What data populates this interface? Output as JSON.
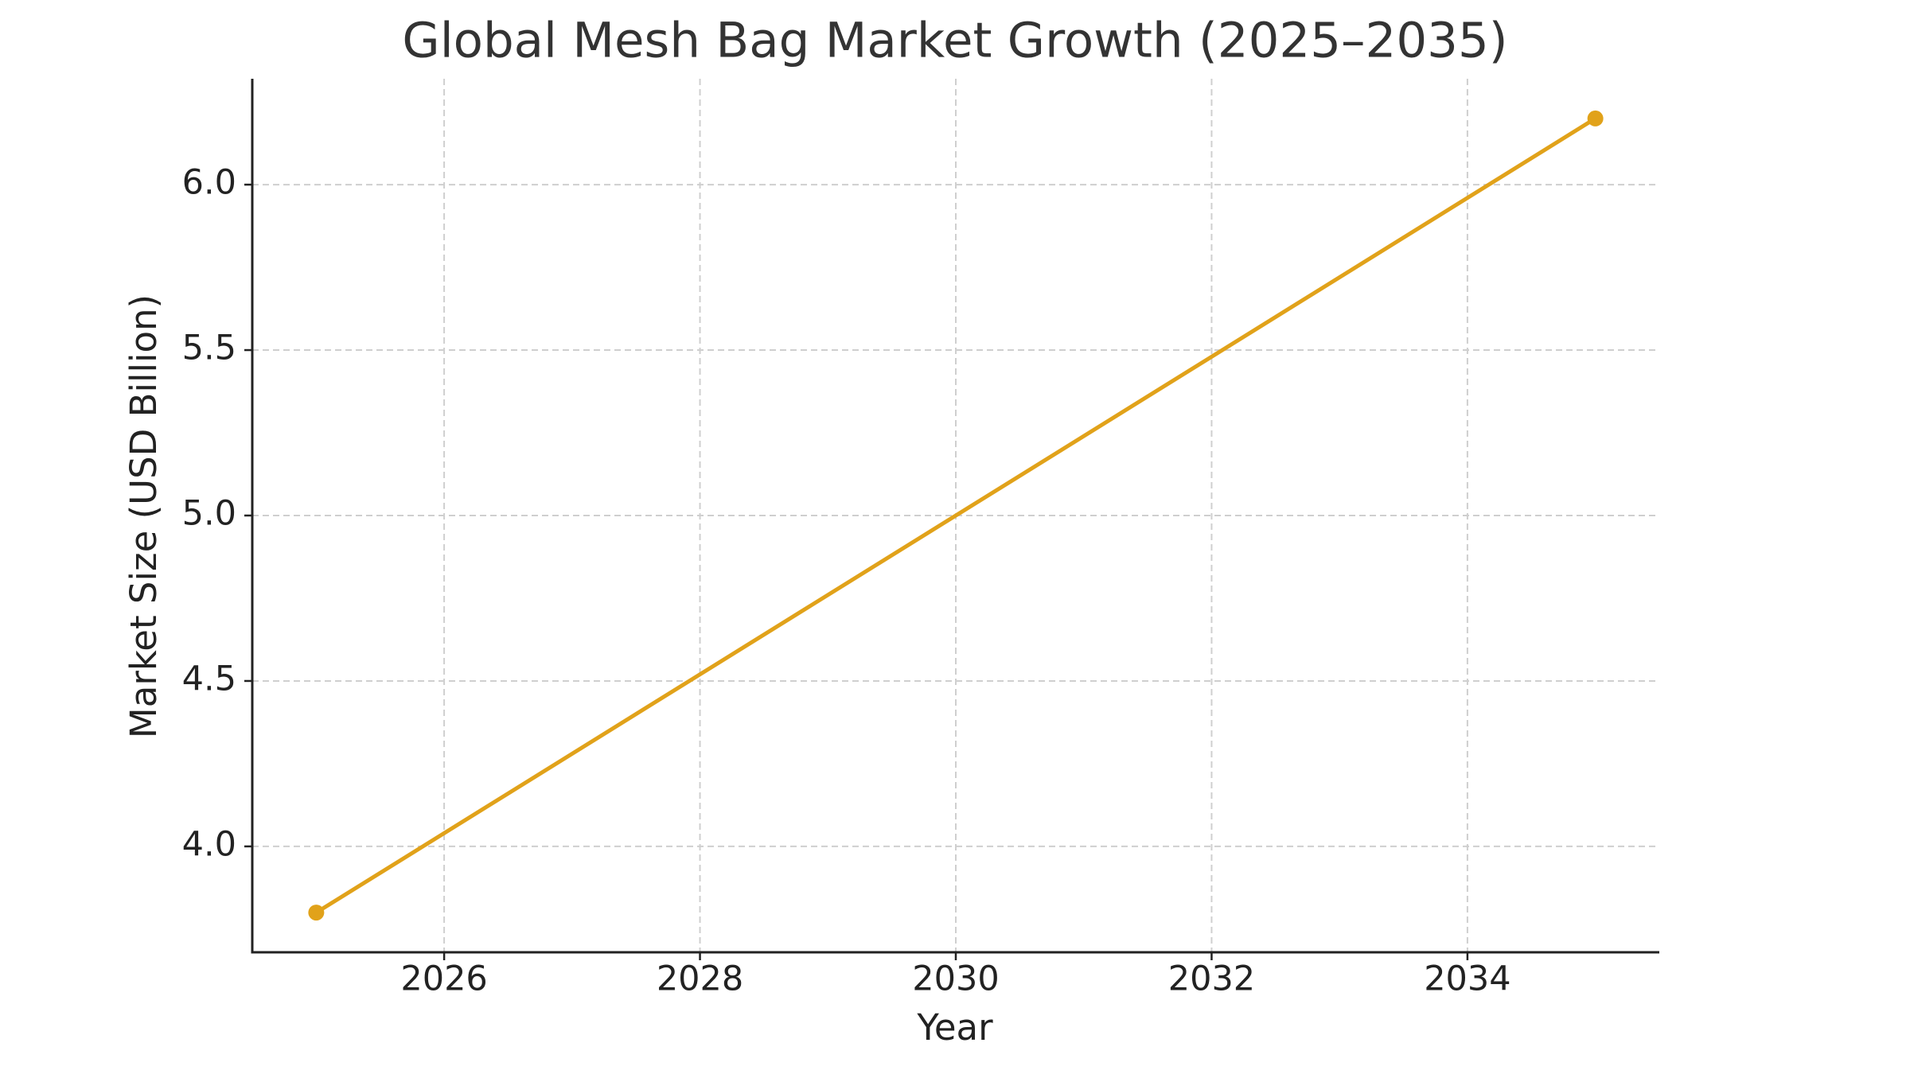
{
  "chart_data": {
    "type": "line",
    "title": "Global Mesh Bag Market Growth (2025–2035)",
    "x_label": "Year",
    "y_label": "Market Size (USD Billion)",
    "x": [
      2025,
      2035
    ],
    "series": [
      {
        "name": "Market Size",
        "color": "#e1a21a",
        "values": [
          3.8,
          6.2
        ]
      }
    ],
    "xlim": [
      2024.5,
      2035.5
    ],
    "ylim": [
      3.68,
      6.32
    ],
    "xticks": [
      2026,
      2028,
      2030,
      2032,
      2034
    ],
    "yticks": [
      {
        "value": 4,
        "label": "4.0"
      },
      4.5,
      {
        "value": 5,
        "label": "5.0"
      },
      5.5,
      {
        "value": 6,
        "label": "6.0"
      }
    ],
    "grid": true
  }
}
